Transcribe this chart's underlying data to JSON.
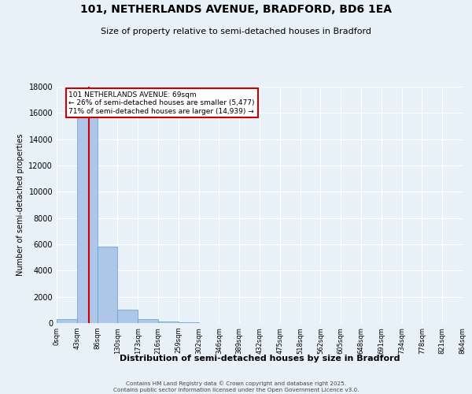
{
  "title_line1": "101, NETHERLANDS AVENUE, BRADFORD, BD6 1EA",
  "title_line2": "Size of property relative to semi-detached houses in Bradford",
  "xlabel": "Distribution of semi-detached houses by size in Bradford",
  "ylabel": "Number of semi-detached properties",
  "bin_labels": [
    "0sqm",
    "43sqm",
    "86sqm",
    "130sqm",
    "173sqm",
    "216sqm",
    "259sqm",
    "302sqm",
    "346sqm",
    "389sqm",
    "432sqm",
    "475sqm",
    "518sqm",
    "562sqm",
    "605sqm",
    "648sqm",
    "691sqm",
    "734sqm",
    "778sqm",
    "821sqm",
    "864sqm"
  ],
  "bar_values": [
    300,
    16000,
    5800,
    1000,
    300,
    100,
    50,
    10,
    0,
    0,
    0,
    0,
    0,
    0,
    0,
    0,
    0,
    0,
    0,
    0
  ],
  "bar_color": "#aec6e8",
  "bar_edge_color": "#5b9bd5",
  "property_sqm": 69,
  "bin_width": 43,
  "red_line_color": "#cc0000",
  "annotation_text_1": "101 NETHERLANDS AVENUE: 69sqm",
  "annotation_text_2": "← 26% of semi-detached houses are smaller (5,477)",
  "annotation_text_3": "71% of semi-detached houses are larger (14,939) →",
  "annotation_box_color": "#ffffff",
  "annotation_box_edge": "#cc0000",
  "ylim": [
    0,
    18000
  ],
  "yticks": [
    0,
    2000,
    4000,
    6000,
    8000,
    10000,
    12000,
    14000,
    16000,
    18000
  ],
  "background_color": "#e8f0f8",
  "grid_color": "#ffffff",
  "footer_line1": "Contains HM Land Registry data © Crown copyright and database right 2025.",
  "footer_line2": "Contains public sector information licensed under the Open Government Licence v3.0."
}
